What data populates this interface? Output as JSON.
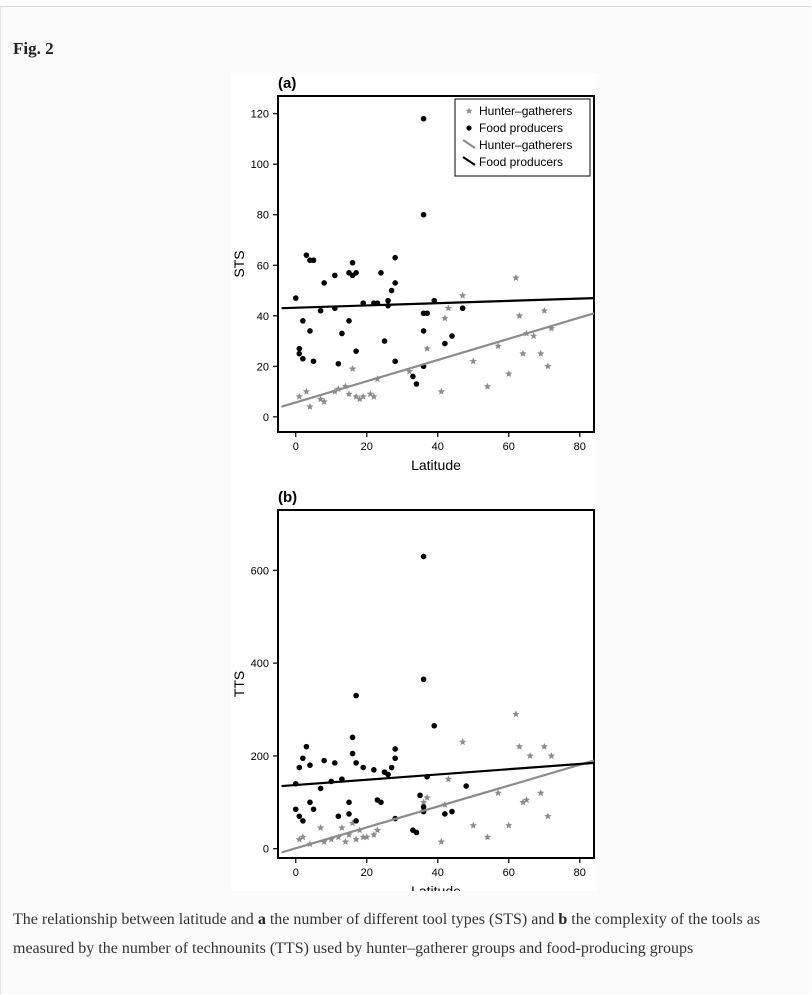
{
  "figure": {
    "label": "Fig. 2",
    "caption": {
      "part1": "The relationship between latitude and ",
      "a": "a",
      "part2": " the number of different tool types (STS) and ",
      "b": "b",
      "part3": " the complexity of the tools as measured by the number of technounits (TTS) used by hunter–gatherer groups and food-producing groups"
    }
  },
  "colors": {
    "hunter_gatherers": "#8c8c8c",
    "food_producers": "#000000",
    "background": "#fbfbfb"
  },
  "chart_data": [
    {
      "type": "scatter",
      "panel": "(a)",
      "xlabel": "Latitude",
      "ylabel": "STS",
      "xlim": [
        -5,
        84
      ],
      "ylim": [
        -6,
        127
      ],
      "xticks": [
        0,
        20,
        40,
        60,
        80
      ],
      "yticks": [
        0,
        20,
        40,
        60,
        80,
        100,
        120
      ],
      "legend": {
        "position": "top-right",
        "entries": [
          {
            "label": "Hunter–gatherers",
            "marker": "star",
            "color": "#8c8c8c"
          },
          {
            "label": "Food producers",
            "marker": "dot",
            "color": "#000000"
          },
          {
            "label": "Hunter–gatherers",
            "marker": "line",
            "color": "#8c8c8c"
          },
          {
            "label": "Food producers",
            "marker": "line",
            "color": "#000000"
          }
        ]
      },
      "series": [
        {
          "name": "Hunter–gatherers",
          "kind": "points",
          "points": [
            [
              1,
              8
            ],
            [
              3,
              10
            ],
            [
              4,
              4
            ],
            [
              7,
              7
            ],
            [
              8,
              6
            ],
            [
              11,
              10
            ],
            [
              12,
              11
            ],
            [
              14,
              12
            ],
            [
              15,
              9
            ],
            [
              16,
              19
            ],
            [
              17,
              8
            ],
            [
              18,
              7
            ],
            [
              19,
              8
            ],
            [
              21,
              9
            ],
            [
              22,
              8
            ],
            [
              23,
              15
            ],
            [
              32,
              18
            ],
            [
              37,
              27
            ],
            [
              41,
              10
            ],
            [
              42,
              39
            ],
            [
              43,
              43
            ],
            [
              47,
              48
            ],
            [
              50,
              22
            ],
            [
              54,
              12
            ],
            [
              57,
              28
            ],
            [
              60,
              17
            ],
            [
              62,
              55
            ],
            [
              63,
              40
            ],
            [
              64,
              25
            ],
            [
              65,
              33
            ],
            [
              67,
              32
            ],
            [
              69,
              25
            ],
            [
              70,
              42
            ],
            [
              71,
              20
            ],
            [
              72,
              35
            ]
          ]
        },
        {
          "name": "Food producers",
          "kind": "points",
          "points": [
            [
              0,
              47
            ],
            [
              1,
              27
            ],
            [
              1,
              25
            ],
            [
              2,
              38
            ],
            [
              2,
              23
            ],
            [
              3,
              64
            ],
            [
              4,
              34
            ],
            [
              4,
              62
            ],
            [
              5,
              62
            ],
            [
              5,
              22
            ],
            [
              7,
              42
            ],
            [
              8,
              53
            ],
            [
              11,
              43
            ],
            [
              11,
              56
            ],
            [
              12,
              21
            ],
            [
              13,
              33
            ],
            [
              15,
              38
            ],
            [
              15,
              57
            ],
            [
              16,
              61
            ],
            [
              16,
              56
            ],
            [
              17,
              26
            ],
            [
              17,
              57
            ],
            [
              19,
              45
            ],
            [
              22,
              45
            ],
            [
              23,
              45
            ],
            [
              24,
              57
            ],
            [
              25,
              30
            ],
            [
              26,
              46
            ],
            [
              26,
              44
            ],
            [
              27,
              50
            ],
            [
              28,
              22
            ],
            [
              28,
              53
            ],
            [
              28,
              63
            ],
            [
              33,
              16
            ],
            [
              34,
              13
            ],
            [
              36,
              20
            ],
            [
              36,
              34
            ],
            [
              36,
              80
            ],
            [
              36,
              118
            ],
            [
              37,
              41
            ],
            [
              39,
              46
            ],
            [
              42,
              29
            ],
            [
              44,
              32
            ],
            [
              47,
              43
            ],
            [
              36,
              41
            ]
          ]
        },
        {
          "name": "Hunter–gatherers",
          "kind": "fit",
          "points": [
            [
              -4,
              4
            ],
            [
              84,
              41
            ]
          ]
        },
        {
          "name": "Food producers",
          "kind": "fit",
          "points": [
            [
              -4,
              43
            ],
            [
              84,
              47
            ]
          ]
        }
      ]
    },
    {
      "type": "scatter",
      "panel": "(b)",
      "xlabel": "Latitude",
      "ylabel": "TTS",
      "xlim": [
        -5,
        84
      ],
      "ylim": [
        -20,
        730
      ],
      "xticks": [
        0,
        20,
        40,
        60,
        80
      ],
      "yticks": [
        0,
        200,
        400,
        600
      ],
      "series": [
        {
          "name": "Hunter–gatherers",
          "kind": "points",
          "points": [
            [
              1,
              20
            ],
            [
              2,
              25
            ],
            [
              4,
              10
            ],
            [
              7,
              45
            ],
            [
              8,
              15
            ],
            [
              10,
              20
            ],
            [
              12,
              25
            ],
            [
              13,
              45
            ],
            [
              14,
              15
            ],
            [
              15,
              30
            ],
            [
              16,
              55
            ],
            [
              17,
              20
            ],
            [
              18,
              40
            ],
            [
              19,
              25
            ],
            [
              20,
              25
            ],
            [
              22,
              30
            ],
            [
              23,
              40
            ],
            [
              36,
              100
            ],
            [
              37,
              110
            ],
            [
              41,
              15
            ],
            [
              42,
              95
            ],
            [
              43,
              150
            ],
            [
              47,
              230
            ],
            [
              50,
              50
            ],
            [
              54,
              25
            ],
            [
              57,
              120
            ],
            [
              60,
              50
            ],
            [
              62,
              290
            ],
            [
              63,
              220
            ],
            [
              64,
              100
            ],
            [
              65,
              105
            ],
            [
              66,
              200
            ],
            [
              69,
              120
            ],
            [
              70,
              220
            ],
            [
              71,
              70
            ],
            [
              72,
              200
            ]
          ]
        },
        {
          "name": "Food producers",
          "kind": "points",
          "points": [
            [
              0,
              140
            ],
            [
              0,
              85
            ],
            [
              1,
              175
            ],
            [
              1,
              70
            ],
            [
              2,
              195
            ],
            [
              2,
              60
            ],
            [
              3,
              220
            ],
            [
              4,
              100
            ],
            [
              4,
              180
            ],
            [
              5,
              85
            ],
            [
              7,
              130
            ],
            [
              8,
              190
            ],
            [
              10,
              145
            ],
            [
              11,
              185
            ],
            [
              12,
              70
            ],
            [
              13,
              150
            ],
            [
              15,
              75
            ],
            [
              15,
              100
            ],
            [
              16,
              205
            ],
            [
              16,
              240
            ],
            [
              17,
              185
            ],
            [
              17,
              60
            ],
            [
              17,
              330
            ],
            [
              19,
              175
            ],
            [
              22,
              170
            ],
            [
              23,
              105
            ],
            [
              24,
              100
            ],
            [
              25,
              165
            ],
            [
              26,
              160
            ],
            [
              27,
              175
            ],
            [
              28,
              65
            ],
            [
              28,
              215
            ],
            [
              28,
              195
            ],
            [
              33,
              40
            ],
            [
              34,
              35
            ],
            [
              35,
              115
            ],
            [
              36,
              90
            ],
            [
              36,
              80
            ],
            [
              36,
              365
            ],
            [
              36,
              630
            ],
            [
              37,
              155
            ],
            [
              39,
              265
            ],
            [
              42,
              75
            ],
            [
              44,
              80
            ],
            [
              48,
              135
            ]
          ]
        },
        {
          "name": "Hunter–gatherers",
          "kind": "fit",
          "points": [
            [
              -4,
              -8
            ],
            [
              84,
              190
            ]
          ]
        },
        {
          "name": "Food producers",
          "kind": "fit",
          "points": [
            [
              -4,
              135
            ],
            [
              84,
              185
            ]
          ]
        }
      ]
    }
  ]
}
